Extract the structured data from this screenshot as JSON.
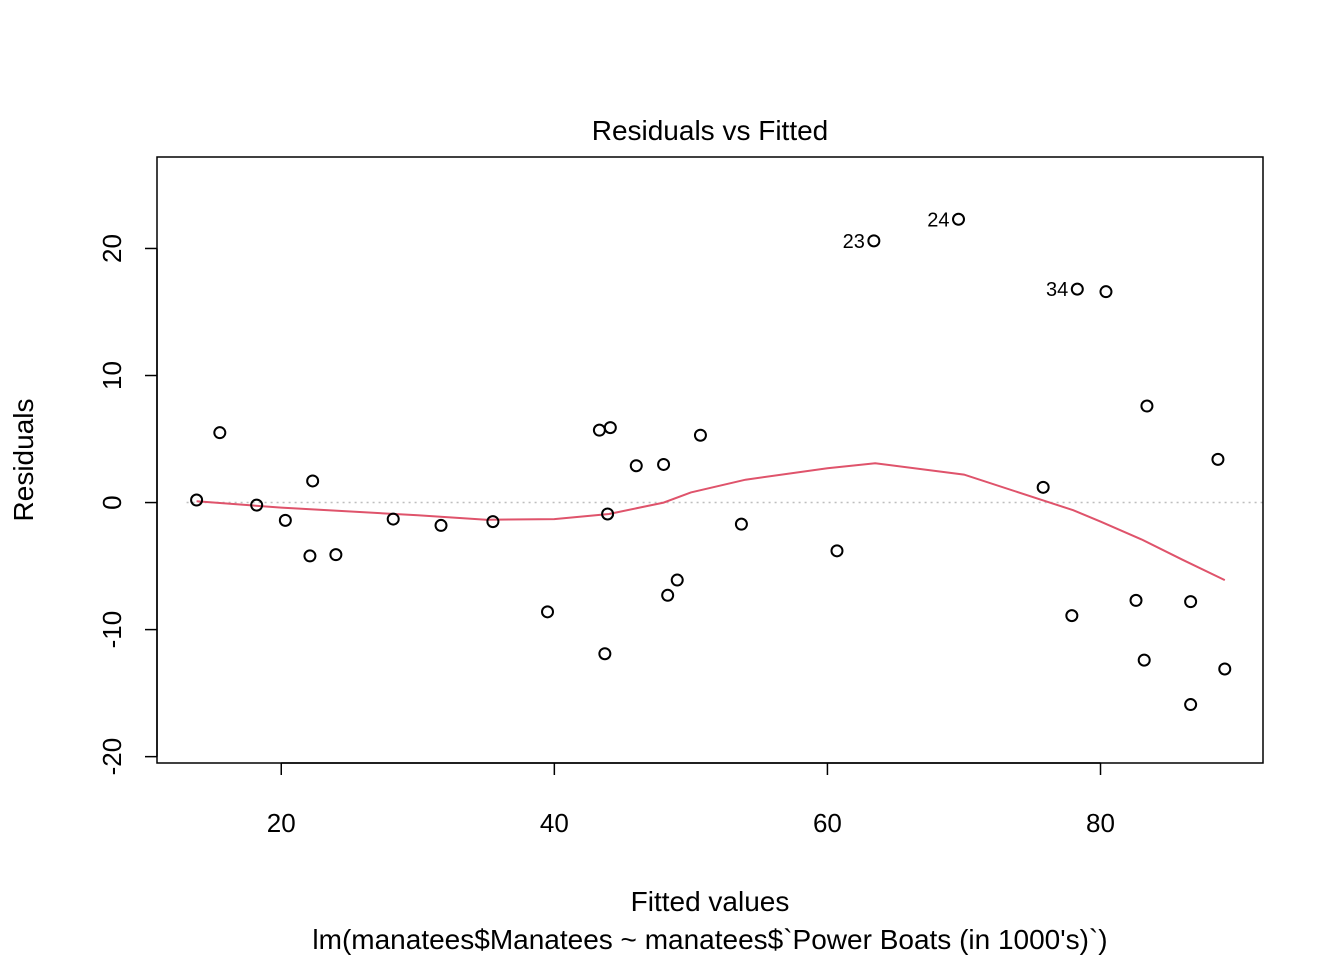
{
  "chart_data": {
    "type": "scatter",
    "title": "Residuals vs Fitted",
    "xlabel": "Fitted values",
    "ylabel": "Residuals",
    "subtitle": "lm(manatees$Manatees ~ manatees$`Power Boats (in 1000's)`)",
    "xlim": [
      10.9,
      91.9
    ],
    "ylim": [
      -20.5,
      27.2
    ],
    "x_ticks": [
      20,
      40,
      60,
      80
    ],
    "y_ticks": [
      -20,
      -10,
      0,
      10,
      20
    ],
    "x_tick_labels": [
      "20",
      "40",
      "60",
      "80"
    ],
    "y_tick_labels": [
      "-20",
      "-10",
      "0",
      "10",
      "20"
    ],
    "reference_line": 0,
    "grid": false,
    "colors": {
      "points": "#000000",
      "smooth": "#DF536B",
      "reference": "#BEBEBE"
    },
    "points": [
      {
        "x": 13.8,
        "y": 0.2
      },
      {
        "x": 15.5,
        "y": 5.5
      },
      {
        "x": 18.2,
        "y": -0.2
      },
      {
        "x": 20.3,
        "y": -1.4
      },
      {
        "x": 22.1,
        "y": -4.2
      },
      {
        "x": 22.3,
        "y": 1.7
      },
      {
        "x": 24.0,
        "y": -4.1
      },
      {
        "x": 28.2,
        "y": -1.3
      },
      {
        "x": 31.7,
        "y": -1.8
      },
      {
        "x": 35.5,
        "y": -1.5
      },
      {
        "x": 39.5,
        "y": -8.6
      },
      {
        "x": 43.3,
        "y": 5.7
      },
      {
        "x": 43.7,
        "y": -11.9
      },
      {
        "x": 43.9,
        "y": -0.9
      },
      {
        "x": 44.1,
        "y": 5.9
      },
      {
        "x": 46.0,
        "y": 2.9
      },
      {
        "x": 48.0,
        "y": 3.0
      },
      {
        "x": 48.3,
        "y": -7.3
      },
      {
        "x": 49.0,
        "y": -6.1
      },
      {
        "x": 50.7,
        "y": 5.3
      },
      {
        "x": 53.7,
        "y": -1.7
      },
      {
        "x": 60.7,
        "y": -3.8
      },
      {
        "x": 63.4,
        "y": 20.6,
        "label": "23"
      },
      {
        "x": 69.6,
        "y": 22.3,
        "label": "24"
      },
      {
        "x": 75.8,
        "y": 1.2
      },
      {
        "x": 77.9,
        "y": -8.9
      },
      {
        "x": 78.3,
        "y": 16.8,
        "label": "34"
      },
      {
        "x": 80.4,
        "y": 16.6
      },
      {
        "x": 82.6,
        "y": -7.7
      },
      {
        "x": 83.2,
        "y": -12.4
      },
      {
        "x": 83.4,
        "y": 7.6
      },
      {
        "x": 86.6,
        "y": -7.8
      },
      {
        "x": 86.6,
        "y": -15.9
      },
      {
        "x": 88.6,
        "y": 3.4
      },
      {
        "x": 89.1,
        "y": -13.1
      }
    ],
    "smooth_line": [
      {
        "x": 13.8,
        "y": 0.1
      },
      {
        "x": 20.0,
        "y": -0.4
      },
      {
        "x": 30.0,
        "y": -1.0
      },
      {
        "x": 35.0,
        "y": -1.35
      },
      {
        "x": 40.0,
        "y": -1.3
      },
      {
        "x": 44.0,
        "y": -0.9
      },
      {
        "x": 48.0,
        "y": 0.0
      },
      {
        "x": 50.0,
        "y": 0.8
      },
      {
        "x": 54.0,
        "y": 1.8
      },
      {
        "x": 60.0,
        "y": 2.7
      },
      {
        "x": 63.5,
        "y": 3.1
      },
      {
        "x": 70.0,
        "y": 2.2
      },
      {
        "x": 76.0,
        "y": 0.1
      },
      {
        "x": 78.0,
        "y": -0.6
      },
      {
        "x": 80.0,
        "y": -1.5
      },
      {
        "x": 83.0,
        "y": -2.9
      },
      {
        "x": 86.0,
        "y": -4.5
      },
      {
        "x": 89.1,
        "y": -6.1
      }
    ]
  }
}
